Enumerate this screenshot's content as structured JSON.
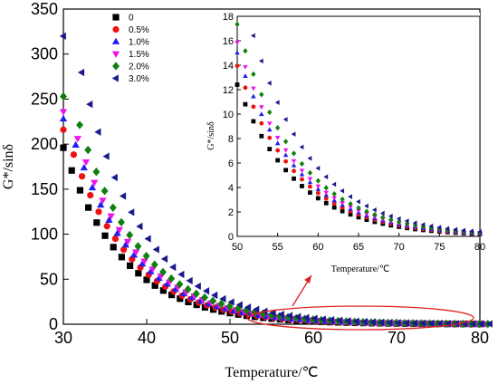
{
  "chart_data": [
    {
      "type": "scatter",
      "name": "main",
      "xlabel": "Temperature/℃",
      "ylabel": "G*/sinδ",
      "xlim": [
        30,
        80
      ],
      "ylim": [
        0,
        350
      ],
      "xticks": [
        30,
        40,
        50,
        60,
        70,
        80
      ],
      "yticks": [
        0,
        50,
        100,
        150,
        200,
        250,
        300,
        350
      ],
      "x": [
        30,
        31,
        32,
        33,
        34,
        35,
        36,
        37,
        38,
        39,
        40,
        41,
        42,
        43,
        44,
        45,
        46,
        47,
        48,
        49,
        50,
        51,
        52,
        53,
        54,
        55,
        56,
        57,
        58,
        59,
        60,
        61,
        62,
        63,
        64,
        65,
        66,
        67,
        68,
        69,
        70,
        71,
        72,
        73,
        74,
        75,
        76,
        77,
        78,
        79,
        80
      ],
      "series": [
        {
          "name": "0",
          "marker": "square",
          "color": "#000000",
          "start": 196,
          "decay": 0.138
        },
        {
          "name": "0.5%",
          "marker": "circle",
          "color": "#ee1111",
          "start": 216,
          "decay": 0.137
        },
        {
          "name": "1.0%",
          "marker": "triangle-up",
          "color": "#1e1ef0",
          "start": 228,
          "decay": 0.136
        },
        {
          "name": "1.5%",
          "marker": "triangle-down",
          "color": "#ee11ee",
          "start": 236,
          "decay": 0.135
        },
        {
          "name": "2.0%",
          "marker": "diamond",
          "color": "#0f7f0f",
          "start": 253,
          "decay": 0.134
        },
        {
          "name": "3.0%",
          "marker": "triangle-left",
          "color": "#1a1a8c",
          "start": 320,
          "decay": 0.135
        }
      ],
      "annotation": "ellipse highlighting 52–80 °C region, arrow to inset"
    },
    {
      "type": "scatter",
      "name": "inset",
      "xlabel": "Temperature/℃",
      "ylabel": "G*/sinδ",
      "xlim": [
        50,
        80
      ],
      "ylim": [
        0,
        18
      ],
      "xticks": [
        50,
        55,
        60,
        65,
        70,
        75,
        80
      ],
      "yticks": [
        0,
        2,
        4,
        6,
        8,
        10,
        12,
        14,
        16,
        18
      ],
      "x": [
        50,
        51,
        52,
        53,
        54,
        55,
        56,
        57,
        58,
        59,
        60,
        61,
        62,
        63,
        64,
        65,
        66,
        67,
        68,
        69,
        70,
        71,
        72,
        73,
        74,
        75,
        76,
        77,
        78,
        79,
        80
      ],
      "series_ref": "main"
    }
  ],
  "legend": {
    "placement": "top-left",
    "entries": [
      "0",
      "0.5%",
      "1.0%",
      "1.5%",
      "2.0%",
      "3.0%"
    ]
  },
  "annotation_color": "#e02020"
}
